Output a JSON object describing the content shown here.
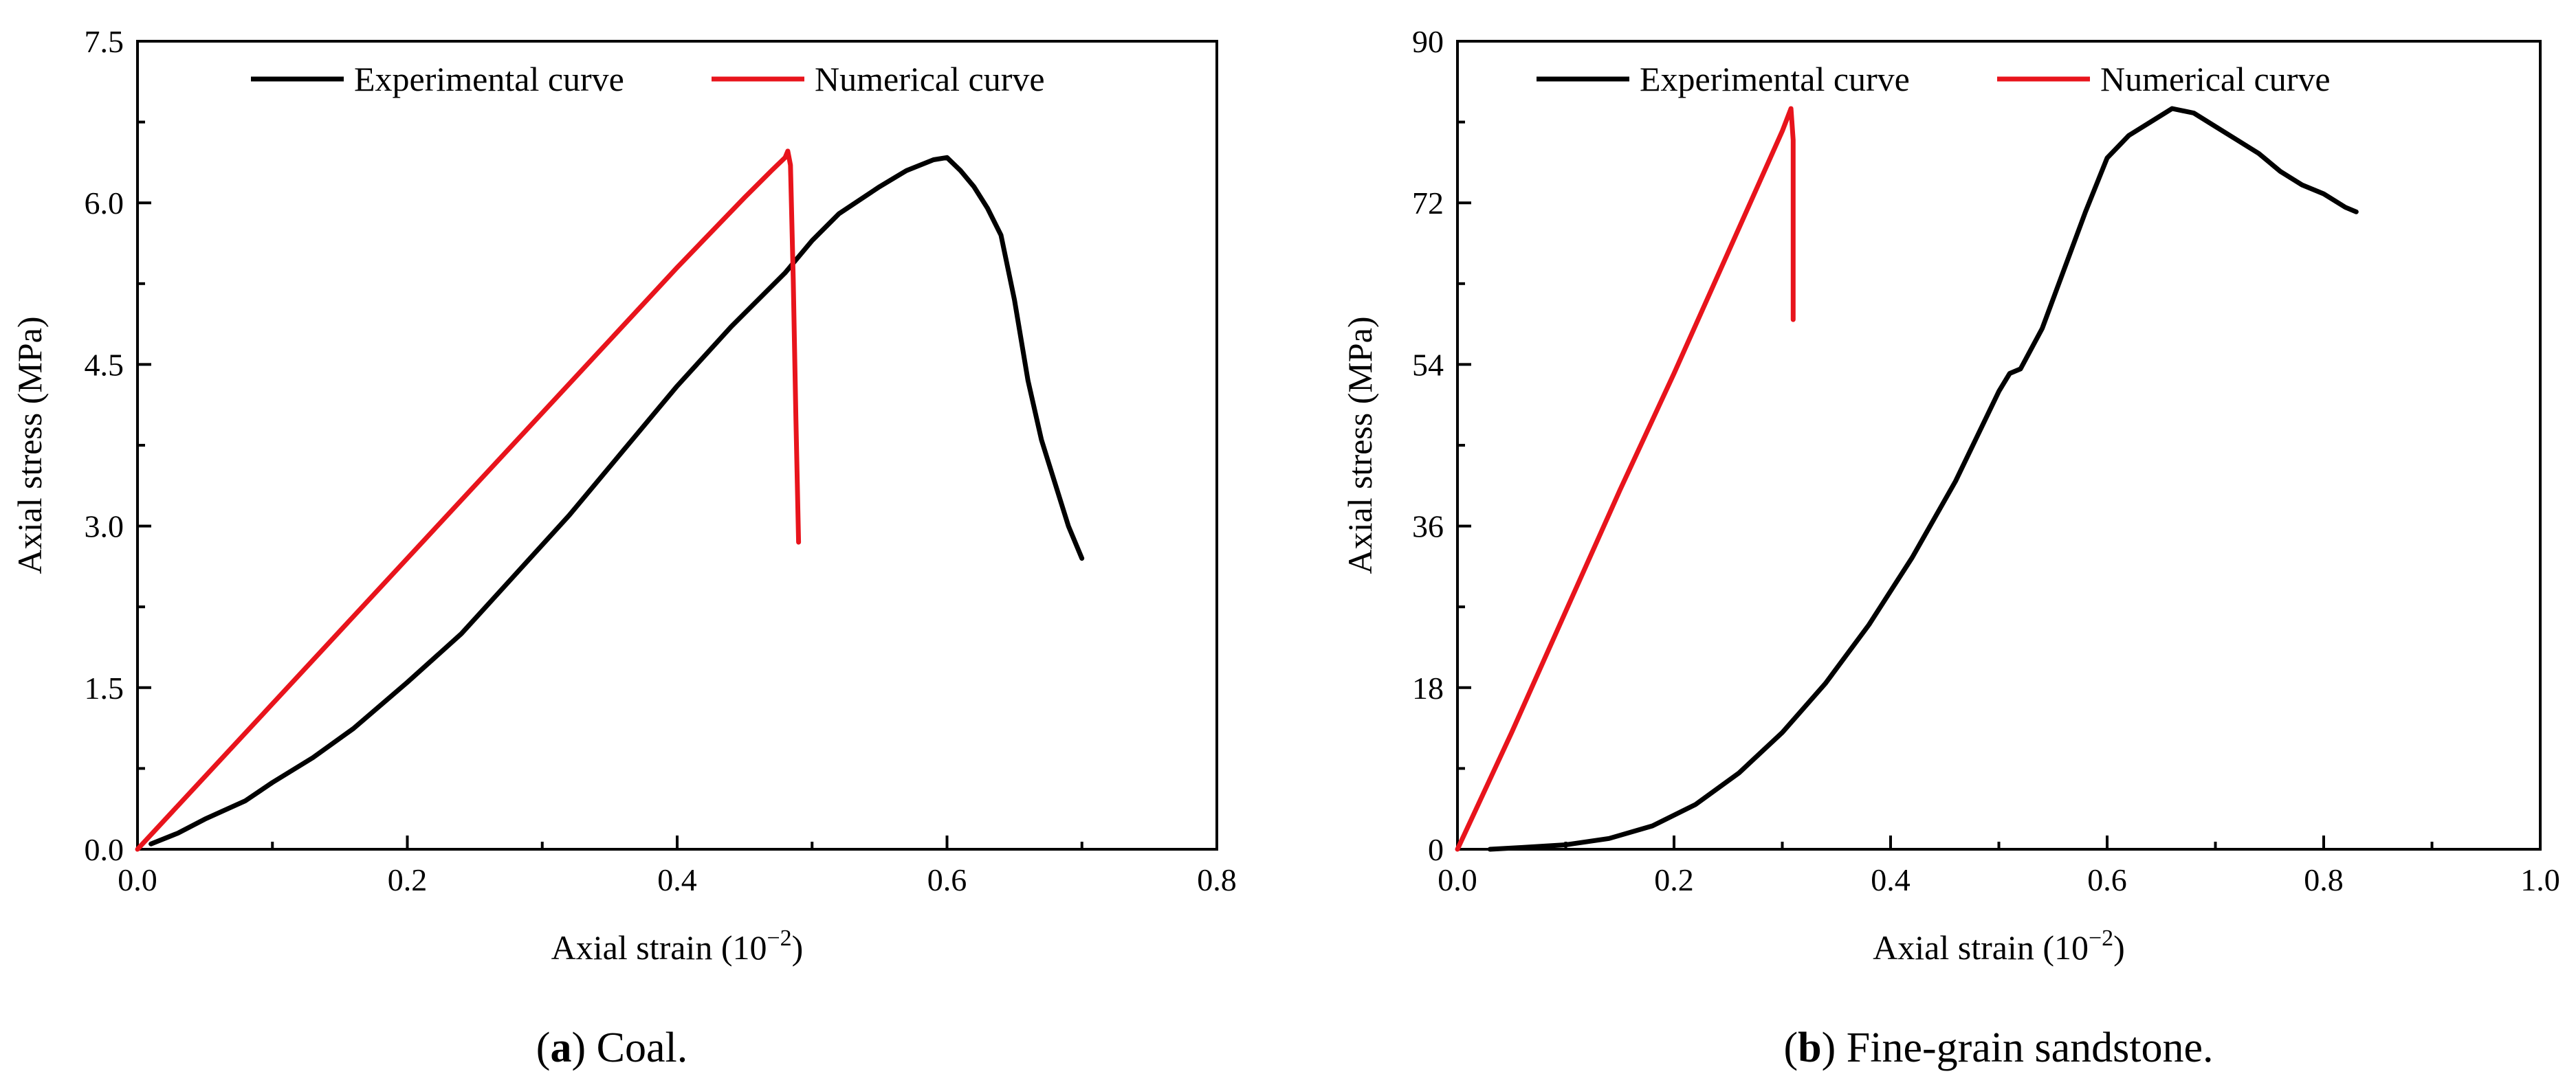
{
  "chart_data": [
    {
      "type": "line",
      "caption": {
        "label": "a",
        "text": " Coal.",
        "open": "(",
        "close": ")"
      },
      "xlabel": {
        "prefix": "Axial strain (10",
        "sup": "−2",
        "suffix": ")"
      },
      "ylabel": "Axial stress (MPa)",
      "xlim": [
        0,
        0.8
      ],
      "ylim": [
        0,
        7.5
      ],
      "xticks": [
        0,
        0.2,
        0.4,
        0.6,
        0.8
      ],
      "xtick_labels": [
        "0.0",
        "0.2",
        "0.4",
        "0.6",
        "0.8"
      ],
      "yticks": [
        0,
        1.5,
        3,
        4.5,
        6,
        7.5
      ],
      "ytick_labels": [
        "0.0",
        "1.5",
        "3.0",
        "4.5",
        "6.0",
        "7.5"
      ],
      "legend_position": "top",
      "series": [
        {
          "name": "Experimental curve",
          "color": "#000000",
          "x": [
            0.01,
            0.03,
            0.05,
            0.08,
            0.1,
            0.13,
            0.16,
            0.2,
            0.24,
            0.28,
            0.32,
            0.36,
            0.4,
            0.44,
            0.48,
            0.5,
            0.52,
            0.55,
            0.57,
            0.59,
            0.6,
            0.61,
            0.62,
            0.63,
            0.64,
            0.65,
            0.66,
            0.67,
            0.68,
            0.69,
            0.7
          ],
          "y": [
            0.05,
            0.15,
            0.28,
            0.45,
            0.62,
            0.85,
            1.12,
            1.55,
            2.0,
            2.55,
            3.1,
            3.7,
            4.3,
            4.85,
            5.35,
            5.65,
            5.9,
            6.15,
            6.3,
            6.4,
            6.42,
            6.3,
            6.15,
            5.95,
            5.7,
            5.1,
            4.35,
            3.8,
            3.4,
            3.0,
            2.7
          ]
        },
        {
          "name": "Numerical curve",
          "color": "#e8141c",
          "x": [
            0.0,
            0.1,
            0.2,
            0.3,
            0.4,
            0.45,
            0.47,
            0.48,
            0.482,
            0.484,
            0.486,
            0.488,
            0.49
          ],
          "y": [
            0.0,
            1.35,
            2.7,
            4.05,
            5.4,
            6.05,
            6.3,
            6.42,
            6.48,
            6.35,
            5.3,
            4.0,
            2.85
          ]
        }
      ]
    },
    {
      "type": "line",
      "caption": {
        "label": "b",
        "text": " Fine-grain sandstone.",
        "open": "(",
        "close": ")"
      },
      "xlabel": {
        "prefix": "Axial strain (10",
        "sup": "−2",
        "suffix": ")"
      },
      "ylabel": "Axial stress (MPa)",
      "xlim": [
        0,
        1.0
      ],
      "ylim": [
        0,
        90
      ],
      "xticks": [
        0,
        0.2,
        0.4,
        0.6,
        0.8,
        1.0
      ],
      "xtick_labels": [
        "0.0",
        "0.2",
        "0.4",
        "0.6",
        "0.8",
        "1.0"
      ],
      "yticks": [
        0,
        18,
        36,
        54,
        72,
        90
      ],
      "ytick_labels": [
        "0",
        "18",
        "36",
        "54",
        "72",
        "90"
      ],
      "legend_position": "top",
      "series": [
        {
          "name": "Experimental curve",
          "color": "#000000",
          "x": [
            0.03,
            0.06,
            0.1,
            0.14,
            0.18,
            0.22,
            0.26,
            0.3,
            0.34,
            0.38,
            0.42,
            0.46,
            0.5,
            0.51,
            0.52,
            0.54,
            0.56,
            0.58,
            0.6,
            0.62,
            0.64,
            0.66,
            0.68,
            0.7,
            0.72,
            0.74,
            0.76,
            0.78,
            0.8,
            0.82,
            0.83
          ],
          "y": [
            0.0,
            0.2,
            0.5,
            1.2,
            2.6,
            5.0,
            8.5,
            13.0,
            18.5,
            25.0,
            32.5,
            41.0,
            51.0,
            53.0,
            53.5,
            58.0,
            64.5,
            71.0,
            77.0,
            79.5,
            81.0,
            82.5,
            82.0,
            80.5,
            79.0,
            77.5,
            75.5,
            74.0,
            73.0,
            71.5,
            71.0
          ]
        },
        {
          "name": "Numerical curve",
          "color": "#e8141c",
          "x": [
            0.0,
            0.05,
            0.1,
            0.15,
            0.2,
            0.25,
            0.3,
            0.308,
            0.31,
            0.31
          ],
          "y": [
            0.0,
            13.0,
            26.5,
            40.0,
            53.0,
            66.5,
            80.0,
            82.5,
            79.0,
            59.0
          ]
        }
      ]
    }
  ]
}
